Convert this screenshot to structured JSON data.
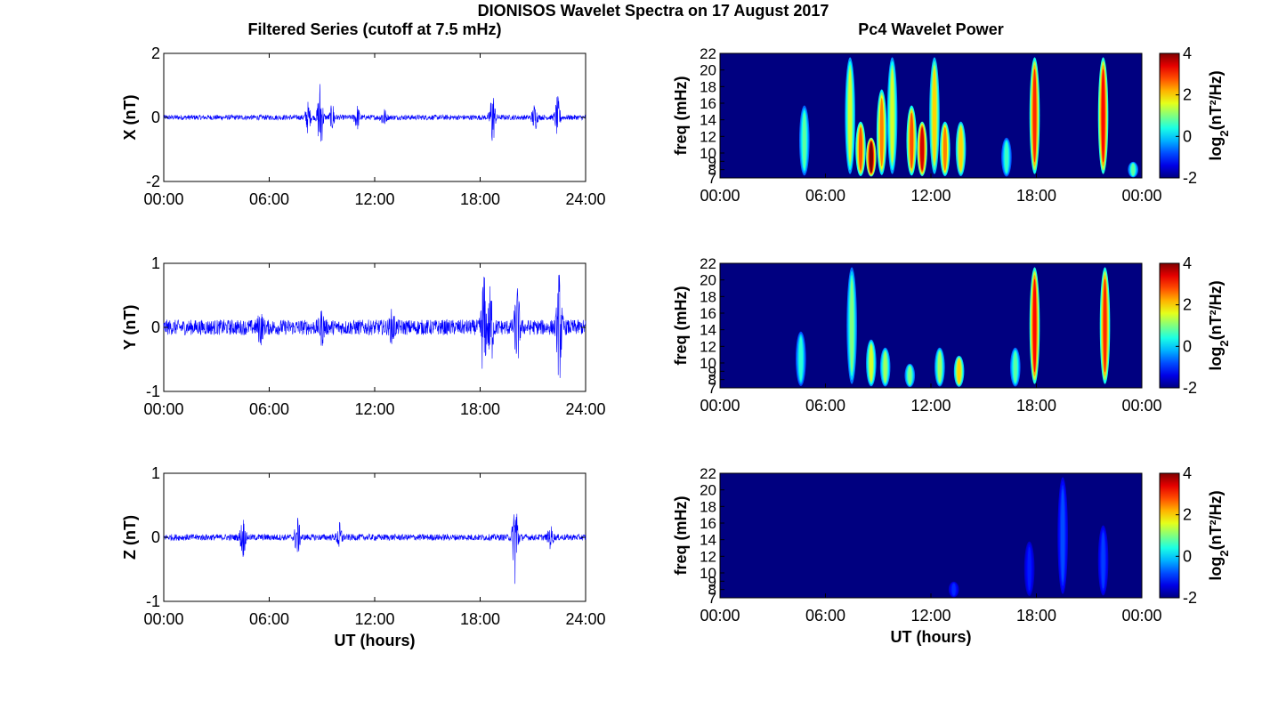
{
  "figure": {
    "title": "DIONISOS Wavelet Spectra on 17 August 2017",
    "left_column_title": "Filtered Series (cutoff at 7.5 mHz)",
    "right_column_title": "Pc4 Wavelet Power"
  },
  "colors": {
    "trace": "#0000ff",
    "background": "#000080",
    "axis": "#000000"
  },
  "chart_data": [
    {
      "type": "line",
      "ylabel": "X (nT)",
      "xlabel": "",
      "x_tick_labels": [
        "00:00",
        "06:00",
        "12:00",
        "18:00",
        "24:00"
      ],
      "y_tick_labels": [
        "-2",
        "0",
        "2"
      ],
      "ylim": [
        -2,
        2
      ],
      "xlim_hours": [
        0,
        24
      ],
      "series": [
        {
          "values_description": "filtered X component, noisy around 0",
          "baseline_amplitude": 0.08,
          "bursts": [
            {
              "t": 8.2,
              "amp": 0.45
            },
            {
              "t": 8.9,
              "amp": 1.2
            },
            {
              "t": 9.6,
              "amp": 0.4
            },
            {
              "t": 11.0,
              "amp": 0.35
            },
            {
              "t": 12.5,
              "amp": 0.3
            },
            {
              "t": 18.7,
              "amp": 0.9
            },
            {
              "t": 21.1,
              "amp": 0.4
            },
            {
              "t": 22.4,
              "amp": 0.6
            }
          ]
        }
      ]
    },
    {
      "type": "line",
      "ylabel": "Y (nT)",
      "xlabel": "",
      "x_tick_labels": [
        "00:00",
        "06:00",
        "12:00",
        "18:00",
        "24:00"
      ],
      "y_tick_labels": [
        "-1",
        "0",
        "1"
      ],
      "ylim": [
        -1,
        1
      ],
      "xlim_hours": [
        0,
        24
      ],
      "series": [
        {
          "values_description": "filtered Y component, noisy around 0",
          "baseline_amplitude": 0.12,
          "bursts": [
            {
              "t": 5.5,
              "amp": 0.2
            },
            {
              "t": 9.0,
              "amp": 0.2
            },
            {
              "t": 13.0,
              "amp": 0.2
            },
            {
              "t": 18.2,
              "amp": 0.8
            },
            {
              "t": 18.6,
              "amp": 0.6
            },
            {
              "t": 20.1,
              "amp": 0.6
            },
            {
              "t": 22.5,
              "amp": 0.8
            }
          ]
        }
      ]
    },
    {
      "type": "line",
      "ylabel": "Z (nT)",
      "xlabel": "UT (hours)",
      "x_tick_labels": [
        "00:00",
        "06:00",
        "12:00",
        "18:00",
        "24:00"
      ],
      "y_tick_labels": [
        "-1",
        "0",
        "1"
      ],
      "ylim": [
        -1,
        1
      ],
      "xlim_hours": [
        0,
        24
      ],
      "series": [
        {
          "values_description": "filtered Z component, noisy around 0",
          "baseline_amplitude": 0.05,
          "bursts": [
            {
              "t": 4.5,
              "amp": 0.3
            },
            {
              "t": 7.6,
              "amp": 0.3
            },
            {
              "t": 10.0,
              "amp": 0.2
            },
            {
              "t": 20.0,
              "amp": 0.8
            },
            {
              "t": 22.0,
              "amp": 0.15
            }
          ]
        }
      ]
    },
    {
      "type": "heatmap",
      "ylabel": "freq (mHz)",
      "xlabel": "",
      "x_tick_labels": [
        "00:00",
        "06:00",
        "12:00",
        "18:00",
        "00:00"
      ],
      "y_tick_labels": [
        "7",
        "8",
        "9",
        "10",
        "12",
        "14",
        "16",
        "18",
        "20",
        "22"
      ],
      "ylim_mHz": [
        7,
        22
      ],
      "colorbar": {
        "label": "log2(nT²/Hz)",
        "ticks": [
          "-2",
          "0",
          "2",
          "4"
        ],
        "range": [
          -2,
          4
        ],
        "colormap": "jet"
      },
      "events": [
        {
          "t": 7.4,
          "fmax": 22,
          "power": 1.5
        },
        {
          "t": 8.0,
          "fmax": 14,
          "power": 2.8
        },
        {
          "t": 8.6,
          "fmax": 12,
          "power": 4.0
        },
        {
          "t": 9.2,
          "fmax": 18,
          "power": 2.5
        },
        {
          "t": 9.8,
          "fmax": 22,
          "power": 1.5
        },
        {
          "t": 10.9,
          "fmax": 16,
          "power": 2.8
        },
        {
          "t": 11.5,
          "fmax": 14,
          "power": 3.5
        },
        {
          "t": 12.2,
          "fmax": 22,
          "power": 2.0
        },
        {
          "t": 12.8,
          "fmax": 14,
          "power": 2.5
        },
        {
          "t": 13.7,
          "fmax": 14,
          "power": 2.0
        },
        {
          "t": 17.9,
          "fmax": 22,
          "power": 3.0
        },
        {
          "t": 21.8,
          "fmax": 22,
          "power": 3.2
        },
        {
          "t": 4.8,
          "fmax": 16,
          "power": 0.8
        },
        {
          "t": 16.3,
          "fmax": 12,
          "power": 0.6
        },
        {
          "t": 23.5,
          "fmax": 9,
          "power": 0.8
        }
      ]
    },
    {
      "type": "heatmap",
      "ylabel": "freq (mHz)",
      "xlabel": "",
      "x_tick_labels": [
        "00:00",
        "06:00",
        "12:00",
        "18:00",
        "00:00"
      ],
      "y_tick_labels": [
        "7",
        "8",
        "9",
        "10",
        "12",
        "14",
        "16",
        "18",
        "20",
        "22"
      ],
      "ylim_mHz": [
        7,
        22
      ],
      "colorbar": {
        "label": "log2(nT²/Hz)",
        "ticks": [
          "-2",
          "0",
          "2",
          "4"
        ],
        "range": [
          -2,
          4
        ],
        "colormap": "jet"
      },
      "events": [
        {
          "t": 7.5,
          "fmax": 22,
          "power": 1.0
        },
        {
          "t": 8.6,
          "fmax": 13,
          "power": 1.5
        },
        {
          "t": 9.4,
          "fmax": 12,
          "power": 1.2
        },
        {
          "t": 10.8,
          "fmax": 10,
          "power": 1.0
        },
        {
          "t": 12.5,
          "fmax": 12,
          "power": 1.2
        },
        {
          "t": 13.6,
          "fmax": 11,
          "power": 2.0
        },
        {
          "t": 17.9,
          "fmax": 22,
          "power": 3.2
        },
        {
          "t": 21.9,
          "fmax": 22,
          "power": 3.0
        },
        {
          "t": 4.6,
          "fmax": 14,
          "power": 0.5
        },
        {
          "t": 16.8,
          "fmax": 12,
          "power": 0.8
        }
      ]
    },
    {
      "type": "heatmap",
      "ylabel": "freq (mHz)",
      "xlabel": "UT (hours)",
      "x_tick_labels": [
        "00:00",
        "06:00",
        "12:00",
        "18:00",
        "00:00"
      ],
      "y_tick_labels": [
        "7",
        "8",
        "9",
        "10",
        "12",
        "14",
        "16",
        "18",
        "20",
        "22"
      ],
      "ylim_mHz": [
        7,
        22
      ],
      "colorbar": {
        "label": "log2(nT²/Hz)",
        "ticks": [
          "-2",
          "0",
          "2",
          "4"
        ],
        "range": [
          -2,
          4
        ],
        "colormap": "jet"
      },
      "events": [
        {
          "t": 19.5,
          "fmax": 22,
          "power": -0.8
        },
        {
          "t": 21.8,
          "fmax": 16,
          "power": -0.9
        },
        {
          "t": 13.3,
          "fmax": 9,
          "power": -1.0
        },
        {
          "t": 17.6,
          "fmax": 14,
          "power": -1.1
        }
      ]
    }
  ]
}
